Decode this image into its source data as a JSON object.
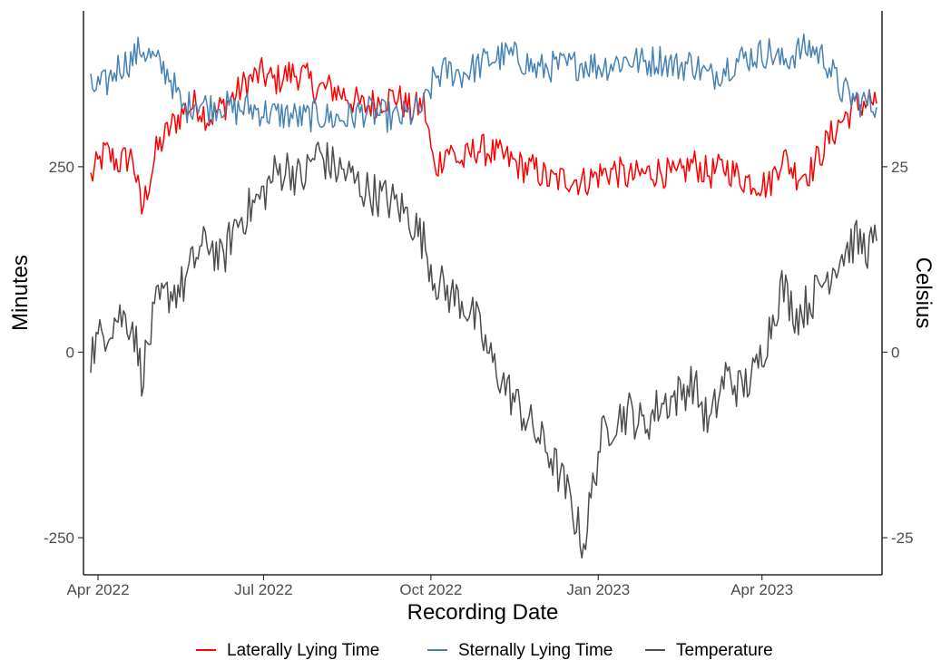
{
  "chart_data": {
    "type": "line",
    "title": "",
    "xlabel": "Recording Date",
    "ylabel": "Minutes",
    "y2label": "Celsius",
    "x_range": [
      "2022-03-24",
      "2023-06-06"
    ],
    "xticks": [
      {
        "date": "2022-04-01",
        "label": "Apr 2022"
      },
      {
        "date": "2022-07-01",
        "label": "Jul 2022"
      },
      {
        "date": "2022-10-01",
        "label": "Oct 2022"
      },
      {
        "date": "2023-01-01",
        "label": "Jan 2023"
      },
      {
        "date": "2023-04-01",
        "label": "Apr 2023"
      }
    ],
    "ylim": [
      -300,
      460
    ],
    "yticks": [
      {
        "value": -250,
        "label": "-250"
      },
      {
        "value": 0,
        "label": "0"
      },
      {
        "value": 250,
        "label": "250"
      }
    ],
    "y2ticks": [
      {
        "value": -25,
        "label": "-25"
      },
      {
        "value": 0,
        "label": "0"
      },
      {
        "value": 25,
        "label": "25"
      }
    ],
    "y2_scale_factor": 10,
    "legend_position": "bottom",
    "grid": false,
    "series": [
      {
        "name": "Laterally Lying Time",
        "axis": "left",
        "color": "#ff0000",
        "points": [
          [
            "2022-03-28",
            235
          ],
          [
            "2022-04-05",
            270
          ],
          [
            "2022-04-12",
            255
          ],
          [
            "2022-04-20",
            265
          ],
          [
            "2022-04-25",
            190
          ],
          [
            "2022-05-03",
            270
          ],
          [
            "2022-05-10",
            300
          ],
          [
            "2022-05-18",
            325
          ],
          [
            "2022-05-25",
            335
          ],
          [
            "2022-06-01",
            315
          ],
          [
            "2022-06-08",
            330
          ],
          [
            "2022-06-15",
            345
          ],
          [
            "2022-06-22",
            365
          ],
          [
            "2022-06-30",
            375
          ],
          [
            "2022-07-07",
            365
          ],
          [
            "2022-07-15",
            375
          ],
          [
            "2022-07-22",
            375
          ],
          [
            "2022-07-30",
            355
          ],
          [
            "2022-08-08",
            355
          ],
          [
            "2022-08-16",
            345
          ],
          [
            "2022-08-25",
            330
          ],
          [
            "2022-09-03",
            340
          ],
          [
            "2022-09-12",
            345
          ],
          [
            "2022-09-20",
            325
          ],
          [
            "2022-09-27",
            335
          ],
          [
            "2022-10-03",
            245
          ],
          [
            "2022-10-10",
            275
          ],
          [
            "2022-10-18",
            255
          ],
          [
            "2022-10-26",
            275
          ],
          [
            "2022-11-03",
            270
          ],
          [
            "2022-11-12",
            260
          ],
          [
            "2022-11-20",
            250
          ],
          [
            "2022-11-28",
            245
          ],
          [
            "2022-12-06",
            230
          ],
          [
            "2022-12-15",
            235
          ],
          [
            "2022-12-24",
            230
          ],
          [
            "2023-01-02",
            240
          ],
          [
            "2023-01-10",
            245
          ],
          [
            "2023-01-18",
            235
          ],
          [
            "2023-01-26",
            240
          ],
          [
            "2023-02-04",
            245
          ],
          [
            "2023-02-13",
            235
          ],
          [
            "2023-02-22",
            255
          ],
          [
            "2023-03-03",
            240
          ],
          [
            "2023-03-12",
            250
          ],
          [
            "2023-03-20",
            235
          ],
          [
            "2023-03-28",
            230
          ],
          [
            "2023-04-05",
            225
          ],
          [
            "2023-04-12",
            265
          ],
          [
            "2023-04-20",
            240
          ],
          [
            "2023-04-28",
            245
          ],
          [
            "2023-05-06",
            280
          ],
          [
            "2023-05-14",
            310
          ],
          [
            "2023-05-22",
            330
          ],
          [
            "2023-05-30",
            340
          ],
          [
            "2023-06-03",
            335
          ]
        ]
      },
      {
        "name": "Sternally Lying Time",
        "axis": "left",
        "color": "#4682b4",
        "points": [
          [
            "2022-03-28",
            355
          ],
          [
            "2022-04-05",
            360
          ],
          [
            "2022-04-12",
            385
          ],
          [
            "2022-04-20",
            395
          ],
          [
            "2022-04-25",
            410
          ],
          [
            "2022-05-03",
            390
          ],
          [
            "2022-05-10",
            375
          ],
          [
            "2022-05-18",
            325
          ],
          [
            "2022-05-25",
            340
          ],
          [
            "2022-06-01",
            330
          ],
          [
            "2022-06-08",
            335
          ],
          [
            "2022-06-15",
            325
          ],
          [
            "2022-06-22",
            330
          ],
          [
            "2022-06-30",
            325
          ],
          [
            "2022-07-07",
            320
          ],
          [
            "2022-07-15",
            320
          ],
          [
            "2022-07-22",
            315
          ],
          [
            "2022-07-30",
            320
          ],
          [
            "2022-08-08",
            315
          ],
          [
            "2022-08-16",
            315
          ],
          [
            "2022-08-25",
            325
          ],
          [
            "2022-09-03",
            320
          ],
          [
            "2022-09-12",
            315
          ],
          [
            "2022-09-20",
            320
          ],
          [
            "2022-09-27",
            330
          ],
          [
            "2022-10-03",
            370
          ],
          [
            "2022-10-10",
            380
          ],
          [
            "2022-10-18",
            375
          ],
          [
            "2022-10-26",
            385
          ],
          [
            "2022-11-03",
            395
          ],
          [
            "2022-11-12",
            400
          ],
          [
            "2022-11-20",
            395
          ],
          [
            "2022-11-28",
            380
          ],
          [
            "2022-12-06",
            385
          ],
          [
            "2022-12-15",
            385
          ],
          [
            "2022-12-24",
            390
          ],
          [
            "2023-01-02",
            385
          ],
          [
            "2023-01-10",
            390
          ],
          [
            "2023-01-18",
            395
          ],
          [
            "2023-01-26",
            390
          ],
          [
            "2023-02-04",
            395
          ],
          [
            "2023-02-13",
            385
          ],
          [
            "2023-02-22",
            390
          ],
          [
            "2023-03-03",
            370
          ],
          [
            "2023-03-12",
            385
          ],
          [
            "2023-03-20",
            395
          ],
          [
            "2023-03-28",
            400
          ],
          [
            "2023-04-05",
            405
          ],
          [
            "2023-04-12",
            390
          ],
          [
            "2023-04-20",
            405
          ],
          [
            "2023-04-28",
            410
          ],
          [
            "2023-05-06",
            395
          ],
          [
            "2023-05-14",
            355
          ],
          [
            "2023-05-22",
            340
          ],
          [
            "2023-05-30",
            335
          ],
          [
            "2023-06-03",
            330
          ]
        ]
      },
      {
        "name": "Temperature",
        "axis": "right",
        "unit": "Celsius",
        "color": "#4d4d4d",
        "points": [
          [
            "2022-03-28",
            0
          ],
          [
            "2022-04-05",
            3
          ],
          [
            "2022-04-12",
            5
          ],
          [
            "2022-04-20",
            4
          ],
          [
            "2022-04-25",
            -3
          ],
          [
            "2022-05-03",
            6
          ],
          [
            "2022-05-10",
            8
          ],
          [
            "2022-05-18",
            9
          ],
          [
            "2022-05-25",
            13
          ],
          [
            "2022-06-01",
            15
          ],
          [
            "2022-06-08",
            12
          ],
          [
            "2022-06-15",
            17
          ],
          [
            "2022-06-22",
            19
          ],
          [
            "2022-06-30",
            21
          ],
          [
            "2022-07-07",
            24
          ],
          [
            "2022-07-15",
            25
          ],
          [
            "2022-07-22",
            23
          ],
          [
            "2022-07-30",
            27
          ],
          [
            "2022-08-08",
            25
          ],
          [
            "2022-08-16",
            24
          ],
          [
            "2022-08-25",
            22
          ],
          [
            "2022-09-03",
            21
          ],
          [
            "2022-09-12",
            20
          ],
          [
            "2022-09-20",
            18
          ],
          [
            "2022-09-27",
            15
          ],
          [
            "2022-10-03",
            10
          ],
          [
            "2022-10-10",
            8
          ],
          [
            "2022-10-18",
            7
          ],
          [
            "2022-10-26",
            4
          ],
          [
            "2022-11-03",
            -1
          ],
          [
            "2022-11-12",
            -5
          ],
          [
            "2022-11-20",
            -8
          ],
          [
            "2022-11-28",
            -11
          ],
          [
            "2022-12-06",
            -14
          ],
          [
            "2022-12-15",
            -19
          ],
          [
            "2022-12-24",
            -26
          ],
          [
            "2023-01-02",
            -12
          ],
          [
            "2023-01-10",
            -9
          ],
          [
            "2023-01-18",
            -8
          ],
          [
            "2023-01-26",
            -10
          ],
          [
            "2023-02-04",
            -7
          ],
          [
            "2023-02-13",
            -6
          ],
          [
            "2023-02-22",
            -4
          ],
          [
            "2023-03-03",
            -10
          ],
          [
            "2023-03-12",
            -3
          ],
          [
            "2023-03-20",
            -5
          ],
          [
            "2023-03-28",
            -3
          ],
          [
            "2023-04-05",
            3
          ],
          [
            "2023-04-12",
            9
          ],
          [
            "2023-04-20",
            5
          ],
          [
            "2023-04-28",
            7
          ],
          [
            "2023-05-06",
            10
          ],
          [
            "2023-05-14",
            13
          ],
          [
            "2023-05-22",
            15
          ],
          [
            "2023-05-30",
            14
          ],
          [
            "2023-06-03",
            15
          ]
        ]
      }
    ]
  }
}
